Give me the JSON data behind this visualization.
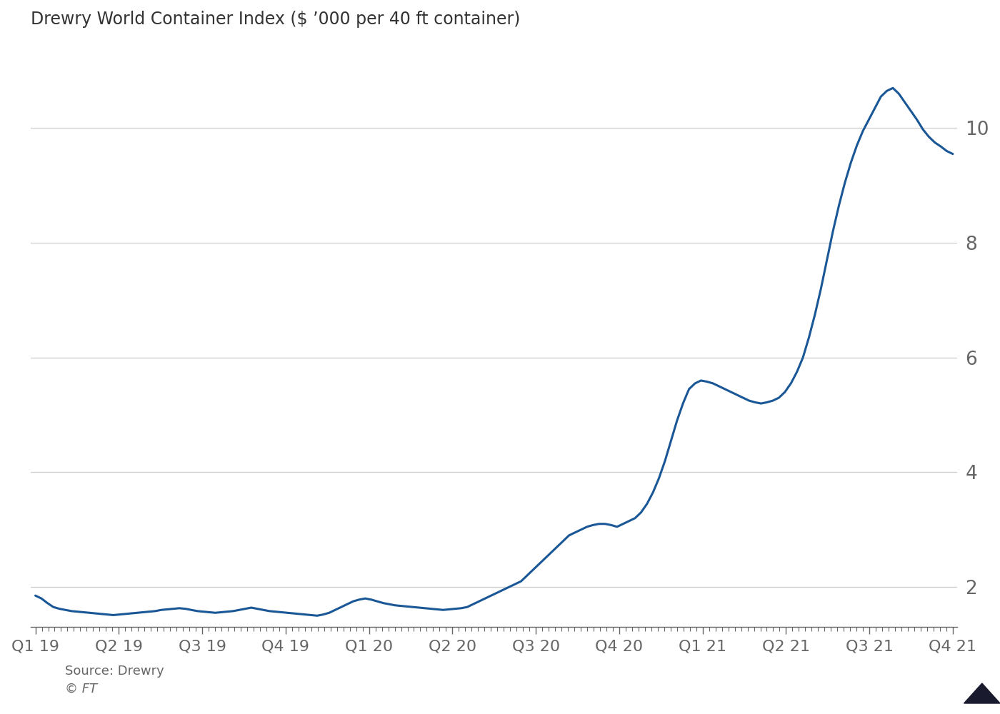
{
  "title": "Drewry World Container Index ($ ’000 per 40 ft container)",
  "source_text": "Source: Drewry",
  "copyright_text": "© FT",
  "line_color": "#1a5796",
  "background_color": "#ffffff",
  "grid_color": "#cccccc",
  "text_color": "#666666",
  "title_color": "#333333",
  "yticks": [
    2,
    4,
    6,
    8,
    10
  ],
  "ylim": [
    1.3,
    11.5
  ],
  "x_tick_labels": [
    "Q1 19",
    "Q2 19",
    "Q3 19",
    "Q4 19",
    "Q1 20",
    "Q2 20",
    "Q3 20",
    "Q4 20",
    "Q1 21",
    "Q2 21",
    "Q3 21",
    "Q4 21"
  ],
  "data": {
    "values": [
      1.85,
      1.8,
      1.72,
      1.65,
      1.62,
      1.6,
      1.58,
      1.57,
      1.56,
      1.55,
      1.54,
      1.53,
      1.52,
      1.51,
      1.52,
      1.53,
      1.54,
      1.55,
      1.56,
      1.57,
      1.58,
      1.6,
      1.61,
      1.62,
      1.63,
      1.62,
      1.6,
      1.58,
      1.57,
      1.56,
      1.55,
      1.56,
      1.57,
      1.58,
      1.6,
      1.62,
      1.64,
      1.62,
      1.6,
      1.58,
      1.57,
      1.56,
      1.55,
      1.54,
      1.53,
      1.52,
      1.51,
      1.5,
      1.52,
      1.55,
      1.6,
      1.65,
      1.7,
      1.75,
      1.78,
      1.8,
      1.78,
      1.75,
      1.72,
      1.7,
      1.68,
      1.67,
      1.66,
      1.65,
      1.64,
      1.63,
      1.62,
      1.61,
      1.6,
      1.61,
      1.62,
      1.63,
      1.65,
      1.7,
      1.75,
      1.8,
      1.85,
      1.9,
      1.95,
      2.0,
      2.05,
      2.1,
      2.2,
      2.3,
      2.4,
      2.5,
      2.6,
      2.7,
      2.8,
      2.9,
      2.95,
      3.0,
      3.05,
      3.08,
      3.1,
      3.1,
      3.08,
      3.05,
      3.1,
      3.15,
      3.2,
      3.3,
      3.45,
      3.65,
      3.9,
      4.2,
      4.55,
      4.9,
      5.2,
      5.45,
      5.55,
      5.6,
      5.58,
      5.55,
      5.5,
      5.45,
      5.4,
      5.35,
      5.3,
      5.25,
      5.22,
      5.2,
      5.22,
      5.25,
      5.3,
      5.4,
      5.55,
      5.75,
      6.0,
      6.35,
      6.75,
      7.2,
      7.7,
      8.2,
      8.65,
      9.05,
      9.4,
      9.7,
      9.95,
      10.15,
      10.35,
      10.55,
      10.65,
      10.7,
      10.6,
      10.45,
      10.3,
      10.15,
      9.98,
      9.85,
      9.75,
      9.68,
      9.6,
      9.55
    ]
  }
}
